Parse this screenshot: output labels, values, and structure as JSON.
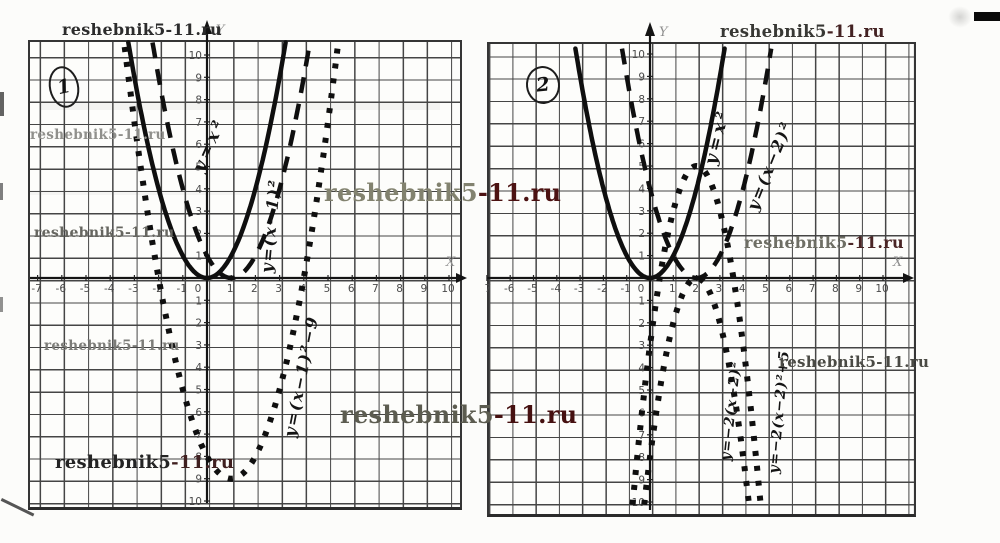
{
  "watermark": {
    "full": "reshebnik5-11.ru",
    "part1": "reshebnik5",
    "part2": "-11.ru"
  },
  "panels": [
    {
      "badge": "1",
      "axis_x_label": "X",
      "axis_y_label": "Y",
      "x_ticks": [
        {
          "v": -7,
          "t": "-7"
        },
        {
          "v": -6,
          "t": "-6"
        },
        {
          "v": -5,
          "t": "-5"
        },
        {
          "v": -4,
          "t": "-4"
        },
        {
          "v": -3,
          "t": "-3"
        },
        {
          "v": -2,
          "t": "-2"
        },
        {
          "v": -1,
          "t": "-1"
        },
        {
          "v": 0,
          "t": "0"
        },
        {
          "v": 1,
          "t": "1"
        },
        {
          "v": 2,
          "t": "2"
        },
        {
          "v": 3,
          "t": "3"
        },
        {
          "v": 4,
          "t": "4"
        },
        {
          "v": 5,
          "t": "5"
        },
        {
          "v": 6,
          "t": "6"
        },
        {
          "v": 7,
          "t": "7"
        },
        {
          "v": 8,
          "t": "8"
        },
        {
          "v": 9,
          "t": "9"
        },
        {
          "v": 10,
          "t": "10"
        }
      ],
      "y_ticks": [
        {
          "v": 10,
          "t": "10"
        },
        {
          "v": 9,
          "t": "9"
        },
        {
          "v": 8,
          "t": "8"
        },
        {
          "v": 7,
          "t": "7"
        },
        {
          "v": 6,
          "t": "6"
        },
        {
          "v": 5,
          "t": "5"
        },
        {
          "v": 4,
          "t": "4"
        },
        {
          "v": 3,
          "t": "3"
        },
        {
          "v": 2,
          "t": "2"
        },
        {
          "v": 1,
          "t": "1"
        },
        {
          "v": -1,
          "t": "1"
        },
        {
          "v": -2,
          "t": "2"
        },
        {
          "v": -3,
          "t": "3"
        },
        {
          "v": -4,
          "t": "4"
        },
        {
          "v": -5,
          "t": "5"
        },
        {
          "v": -6,
          "t": "6"
        },
        {
          "v": -7,
          "t": "7"
        },
        {
          "v": -8,
          "t": "8"
        },
        {
          "v": -9,
          "t": "9"
        },
        {
          "v": -10,
          "t": "10"
        }
      ]
    },
    {
      "badge": "2",
      "axis_x_label": "X",
      "axis_y_label": "Y",
      "x_ticks": [
        {
          "v": -7,
          "t": "-7"
        },
        {
          "v": -6,
          "t": "-6"
        },
        {
          "v": -5,
          "t": "-5"
        },
        {
          "v": -4,
          "t": "-4"
        },
        {
          "v": -3,
          "t": "-3"
        },
        {
          "v": -2,
          "t": "-2"
        },
        {
          "v": -1,
          "t": "-1"
        },
        {
          "v": 0,
          "t": "0"
        },
        {
          "v": 1,
          "t": "1"
        },
        {
          "v": 2,
          "t": "2"
        },
        {
          "v": 3,
          "t": "3"
        },
        {
          "v": 4,
          "t": "4"
        },
        {
          "v": 5,
          "t": "5"
        },
        {
          "v": 6,
          "t": "6"
        },
        {
          "v": 7,
          "t": "7"
        },
        {
          "v": 8,
          "t": "8"
        },
        {
          "v": 9,
          "t": "9"
        },
        {
          "v": 10,
          "t": "10"
        }
      ],
      "y_ticks": [
        {
          "v": 10,
          "t": "10"
        },
        {
          "v": 9,
          "t": "9"
        },
        {
          "v": 8,
          "t": "8"
        },
        {
          "v": 7,
          "t": "7"
        },
        {
          "v": 6,
          "t": "6"
        },
        {
          "v": 5,
          "t": "5"
        },
        {
          "v": 4,
          "t": "4"
        },
        {
          "v": 3,
          "t": "3"
        },
        {
          "v": 2,
          "t": "2"
        },
        {
          "v": 1,
          "t": "1"
        },
        {
          "v": -1,
          "t": "1"
        },
        {
          "v": -2,
          "t": "2"
        },
        {
          "v": -3,
          "t": "3"
        },
        {
          "v": -4,
          "t": "4"
        },
        {
          "v": -5,
          "t": "5"
        },
        {
          "v": -6,
          "t": "6"
        },
        {
          "v": -7,
          "t": "7"
        },
        {
          "v": -8,
          "t": "8"
        },
        {
          "v": -9,
          "t": "9"
        },
        {
          "v": -10,
          "t": "10"
        }
      ]
    }
  ],
  "chart_data": [
    {
      "type": "line",
      "title": "",
      "panel_label": "1",
      "x_range": [
        -7,
        10
      ],
      "y_range": [
        -10,
        10
      ],
      "grid": true,
      "legend": "handwritten labels along curves",
      "series": [
        {
          "name": "y=x²",
          "style": "solid",
          "vertex": {
            "a": 1,
            "h": 0,
            "k": 0
          },
          "x": [
            -3,
            -2,
            -1,
            0,
            1,
            2,
            3
          ],
          "y": [
            9,
            4,
            1,
            0,
            1,
            4,
            9
          ]
        },
        {
          "name": "y=(x−1)²",
          "style": "dashed",
          "vertex": {
            "a": 1,
            "h": 1,
            "k": 0
          },
          "x": [
            -2,
            -1,
            0,
            1,
            2,
            3,
            4
          ],
          "y": [
            9,
            4,
            1,
            0,
            1,
            4,
            9
          ]
        },
        {
          "name": "y=(x−1)²−9",
          "style": "dotted",
          "vertex": {
            "a": 1,
            "h": 1,
            "k": -9
          },
          "x": [
            -3,
            -2,
            -1,
            0,
            1,
            2,
            3,
            4,
            5
          ],
          "y": [
            7,
            0,
            -5,
            -8,
            -9,
            -8,
            -5,
            0,
            7
          ]
        }
      ]
    },
    {
      "type": "line",
      "title": "",
      "panel_label": "2",
      "x_range": [
        -7,
        10
      ],
      "y_range": [
        -10,
        10
      ],
      "grid": true,
      "legend": "handwritten labels along curves",
      "series": [
        {
          "name": "y=x²",
          "style": "solid",
          "vertex": {
            "a": 1,
            "h": 0,
            "k": 0
          },
          "x": [
            -3,
            -2,
            -1,
            0,
            1,
            2,
            3
          ],
          "y": [
            9,
            4,
            1,
            0,
            1,
            4,
            9
          ]
        },
        {
          "name": "y=(x−2)²",
          "style": "dashed",
          "vertex": {
            "a": 1,
            "h": 2,
            "k": 0
          },
          "x": [
            -1,
            0,
            1,
            2,
            3,
            4,
            5
          ],
          "y": [
            9,
            4,
            1,
            0,
            1,
            4,
            9
          ]
        },
        {
          "name": "y=−2(x−2)²",
          "style": "dotted",
          "vertex": {
            "a": -2,
            "h": 2,
            "k": 0
          },
          "x": [
            0,
            1,
            2,
            3,
            4
          ],
          "y": [
            -8,
            -2,
            0,
            -2,
            -8
          ]
        },
        {
          "name": "y=−2(x−2)²+5",
          "style": "dotted",
          "vertex": {
            "a": -2,
            "h": 2,
            "k": 5
          },
          "x": [
            0,
            1,
            2,
            3,
            4
          ],
          "y": [
            -3,
            3,
            5,
            3,
            -3
          ]
        }
      ]
    }
  ]
}
